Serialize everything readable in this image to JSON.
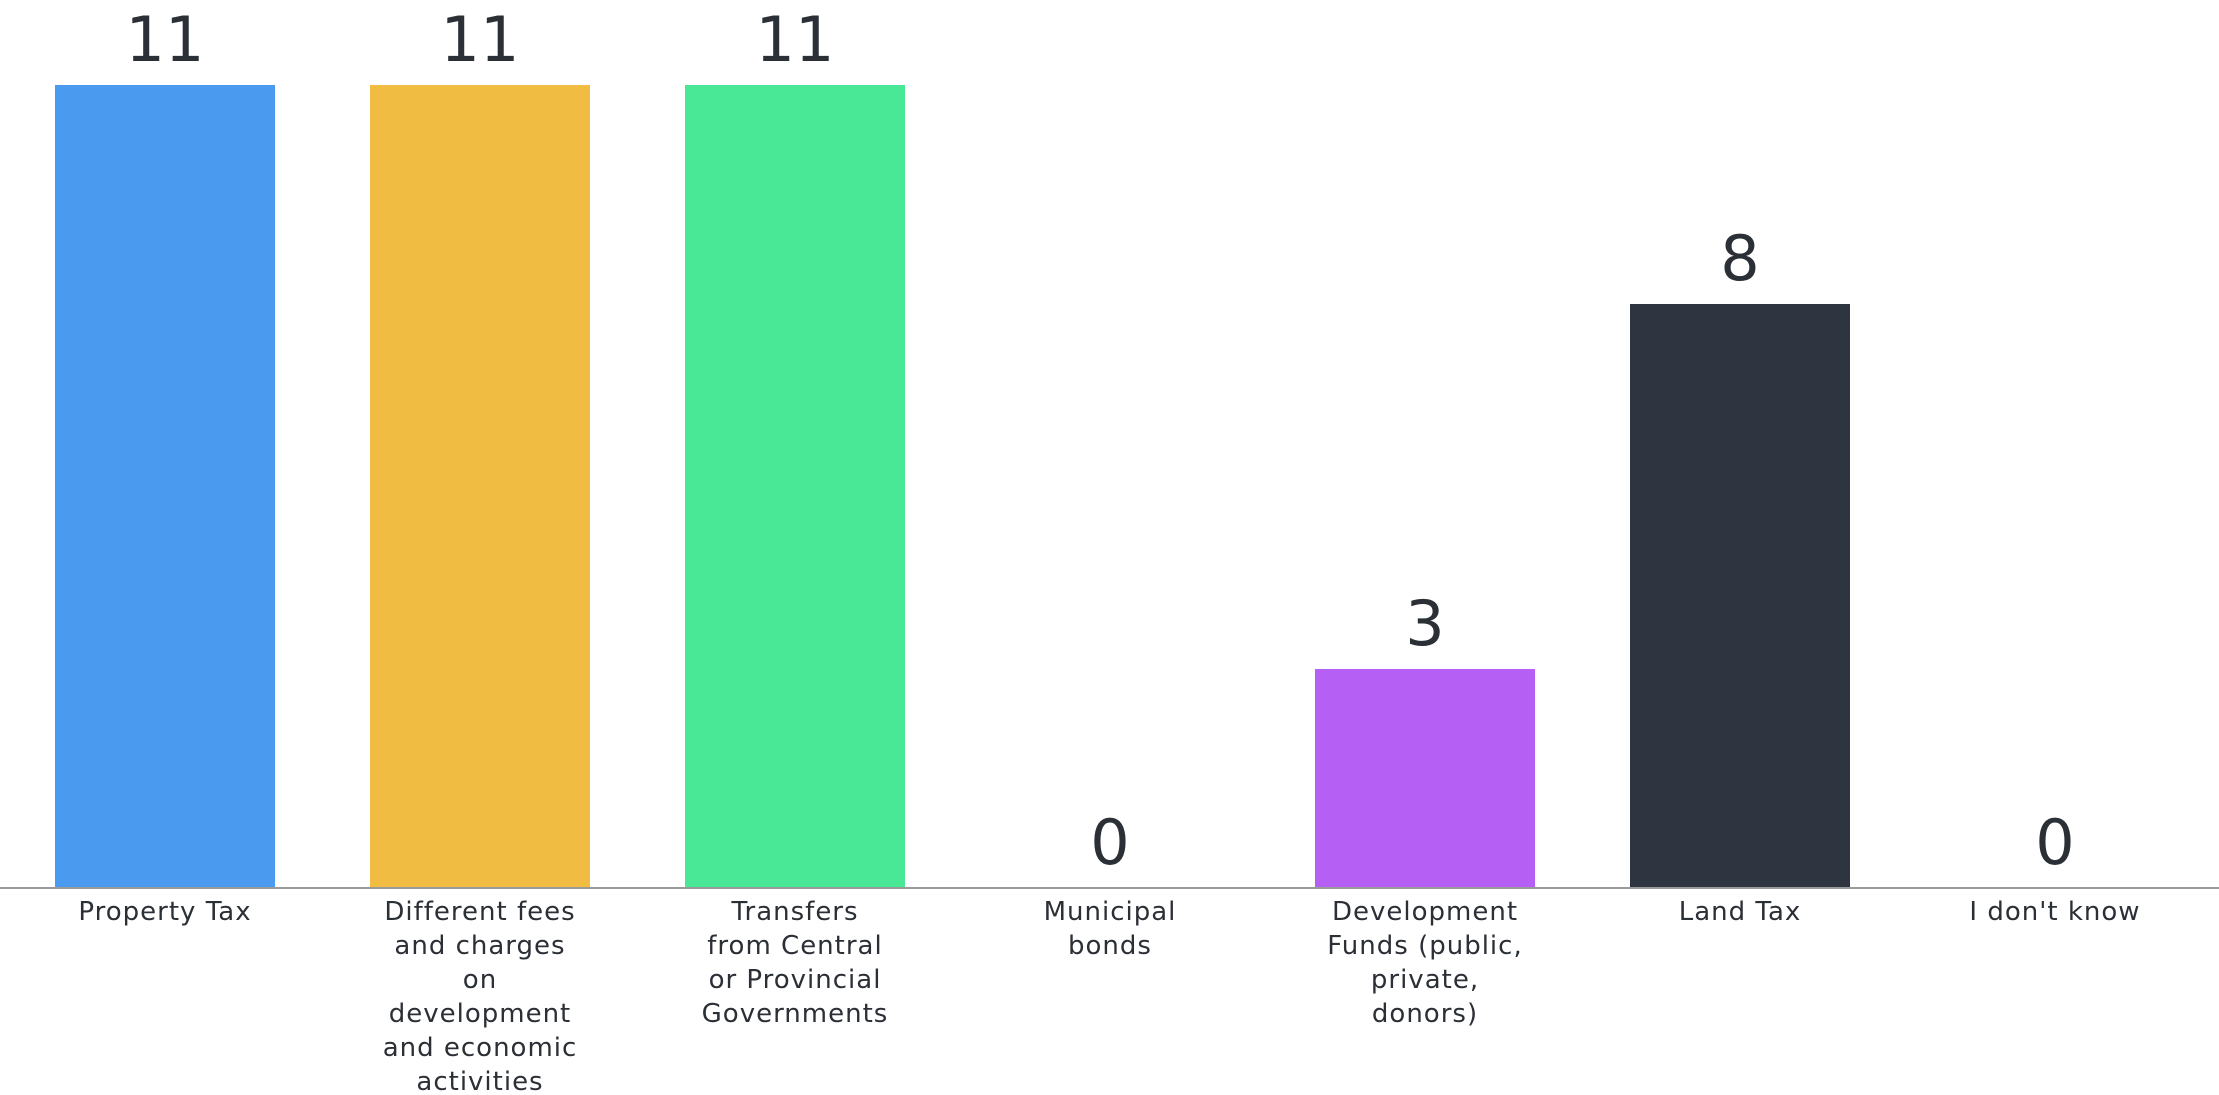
{
  "chart_data": {
    "type": "bar",
    "categories": [
      [
        "Property Tax"
      ],
      [
        "Different fees",
        "and charges",
        "on",
        "development",
        "and economic",
        "activities"
      ],
      [
        "Transfers",
        "from Central",
        "or Provincial",
        "Governments"
      ],
      [
        "Municipal",
        "bonds"
      ],
      [
        "Development",
        "Funds (public,",
        "private,",
        "donors)"
      ],
      [
        "Land Tax"
      ],
      [
        "I don't know"
      ]
    ],
    "values": [
      11,
      11,
      11,
      0,
      3,
      8,
      0
    ],
    "colors": [
      "#4a9af0",
      "#f0bd42",
      "#48e896",
      "#cccccc",
      "#b55ff5",
      "#2f3540",
      "#cccccc"
    ],
    "ylim": [
      0,
      11
    ],
    "grid": false,
    "legend": "none",
    "title": "",
    "xlabel": "",
    "ylabel": ""
  }
}
